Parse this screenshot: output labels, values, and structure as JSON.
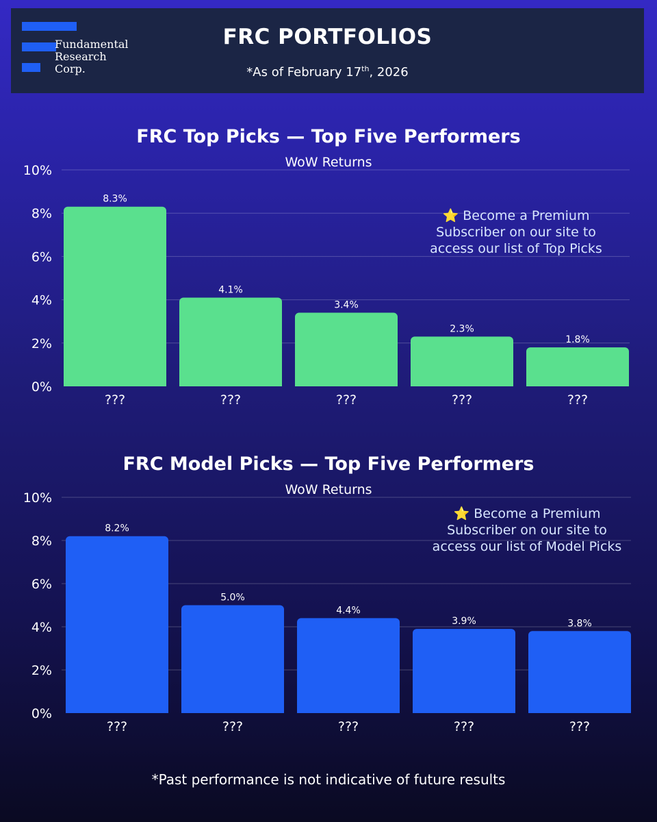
{
  "header": {
    "title": "FRC PORTFOLIOS",
    "subtitle_prefix": "*As of February 17",
    "subtitle_sup": "th",
    "subtitle_suffix": ", 2026",
    "logo_lines": [
      "Fundamental",
      "Research",
      "Corp."
    ]
  },
  "colors": {
    "top_picks_bar": "#5ae08e",
    "model_picks_bar": "#1f5ff5",
    "promo_star": "#f5a623"
  },
  "chart_data": [
    {
      "type": "bar",
      "title": "FRC Top Picks — Top Five Performers",
      "subtitle": "WoW Returns",
      "categories": [
        "???",
        "???",
        "???",
        "???",
        "???"
      ],
      "values": [
        8.3,
        4.1,
        3.4,
        2.3,
        1.8
      ],
      "value_labels": [
        "8.3%",
        "4.1%",
        "3.4%",
        "2.3%",
        "1.8%"
      ],
      "ylim": [
        0,
        10
      ],
      "yticks": [
        0,
        2,
        4,
        6,
        8,
        10
      ],
      "ytick_labels": [
        "0%",
        "2%",
        "4%",
        "6%",
        "8%",
        "10%"
      ],
      "grid": true,
      "promo": {
        "star": "⭐",
        "lines": [
          "Become a Premium",
          "Subscriber on our site to",
          "access our list of Top Picks"
        ]
      }
    },
    {
      "type": "bar",
      "title": "FRC Model Picks — Top Five Performers",
      "subtitle": "WoW Returns",
      "categories": [
        "???",
        "???",
        "???",
        "???",
        "???"
      ],
      "values": [
        8.2,
        5.0,
        4.4,
        3.9,
        3.8
      ],
      "value_labels": [
        "8.2%",
        "5.0%",
        "4.4%",
        "3.9%",
        "3.8%"
      ],
      "ylim": [
        0,
        10
      ],
      "yticks": [
        0,
        2,
        4,
        6,
        8,
        10
      ],
      "ytick_labels": [
        "0%",
        "2%",
        "4%",
        "6%",
        "8%",
        "10%"
      ],
      "grid": true,
      "promo": {
        "star": "⭐",
        "lines": [
          "Become a Premium",
          "Subscriber on our site to",
          "access our list of Model Picks"
        ]
      }
    }
  ],
  "footer": {
    "disclaimer": "*Past performance is not indicative of future results"
  }
}
